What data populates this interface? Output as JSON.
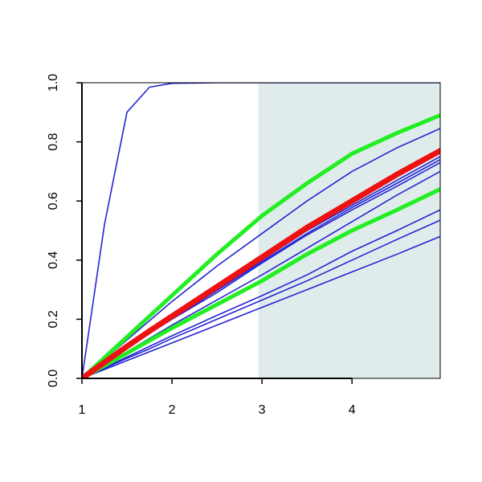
{
  "chart_data": {
    "type": "line",
    "x": [
      1,
      1.25,
      1.5,
      1.75,
      2,
      2.5,
      3,
      3.5,
      4,
      4.5,
      4.98
    ],
    "xlim": [
      1,
      4.98
    ],
    "ylim": [
      0,
      1
    ],
    "xticks": [
      1,
      2,
      3,
      4
    ],
    "yticks": [
      {
        "value": 0,
        "label": "0.0"
      },
      0.2,
      0.4,
      0.6,
      0.8,
      {
        "value": 1,
        "label": "1.0"
      }
    ],
    "shaded_x": [
      2.96,
      4.98
    ],
    "shade_color": "#e0ecec",
    "series": [
      {
        "color": "#2424d4",
        "width": 1.6,
        "values": [
          0,
          0.52,
          0.9,
          0.985,
          0.998,
          1,
          1,
          1,
          1,
          1,
          1
        ]
      },
      {
        "color": "#2424d4",
        "width": 1.6,
        "values": [
          0,
          0.065,
          0.13,
          0.195,
          0.26,
          0.38,
          0.49,
          0.6,
          0.7,
          0.78,
          0.845
        ]
      },
      {
        "color": "#2424d4",
        "width": 1.6,
        "values": [
          0,
          0.053,
          0.105,
          0.156,
          0.205,
          0.3,
          0.4,
          0.5,
          0.585,
          0.67,
          0.75
        ]
      },
      {
        "color": "#2424d4",
        "width": 1.6,
        "values": [
          0,
          0.052,
          0.104,
          0.154,
          0.202,
          0.297,
          0.395,
          0.49,
          0.578,
          0.66,
          0.74
        ]
      },
      {
        "color": "#2424d4",
        "width": 1.6,
        "values": [
          0,
          0.051,
          0.102,
          0.152,
          0.2,
          0.29,
          0.39,
          0.485,
          0.57,
          0.65,
          0.73
        ]
      },
      {
        "color": "#2424d4",
        "width": 1.6,
        "values": [
          0,
          0.045,
          0.09,
          0.135,
          0.18,
          0.265,
          0.35,
          0.44,
          0.53,
          0.62,
          0.7
        ]
      },
      {
        "color": "#2424d4",
        "width": 1.6,
        "values": [
          0,
          0.036,
          0.072,
          0.108,
          0.144,
          0.213,
          0.28,
          0.35,
          0.43,
          0.5,
          0.57
        ]
      },
      {
        "color": "#2424d4",
        "width": 1.6,
        "values": [
          0,
          0.034,
          0.068,
          0.1,
          0.135,
          0.2,
          0.265,
          0.33,
          0.4,
          0.47,
          0.535
        ]
      },
      {
        "color": "#2424d4",
        "width": 1.6,
        "values": [
          0,
          0.03,
          0.06,
          0.09,
          0.12,
          0.18,
          0.24,
          0.3,
          0.36,
          0.42,
          0.48
        ]
      },
      {
        "color": "#22ee22",
        "width": 5,
        "values": [
          0,
          0.07,
          0.14,
          0.21,
          0.28,
          0.42,
          0.55,
          0.66,
          0.76,
          0.83,
          0.89
        ]
      },
      {
        "color": "#22ee22",
        "width": 5,
        "values": [
          0,
          0.043,
          0.085,
          0.128,
          0.17,
          0.25,
          0.33,
          0.42,
          0.5,
          0.57,
          0.64
        ]
      },
      {
        "color": "#ee1111",
        "width": 7,
        "values": [
          0,
          0.054,
          0.108,
          0.16,
          0.21,
          0.31,
          0.41,
          0.51,
          0.6,
          0.69,
          0.77
        ]
      }
    ]
  }
}
